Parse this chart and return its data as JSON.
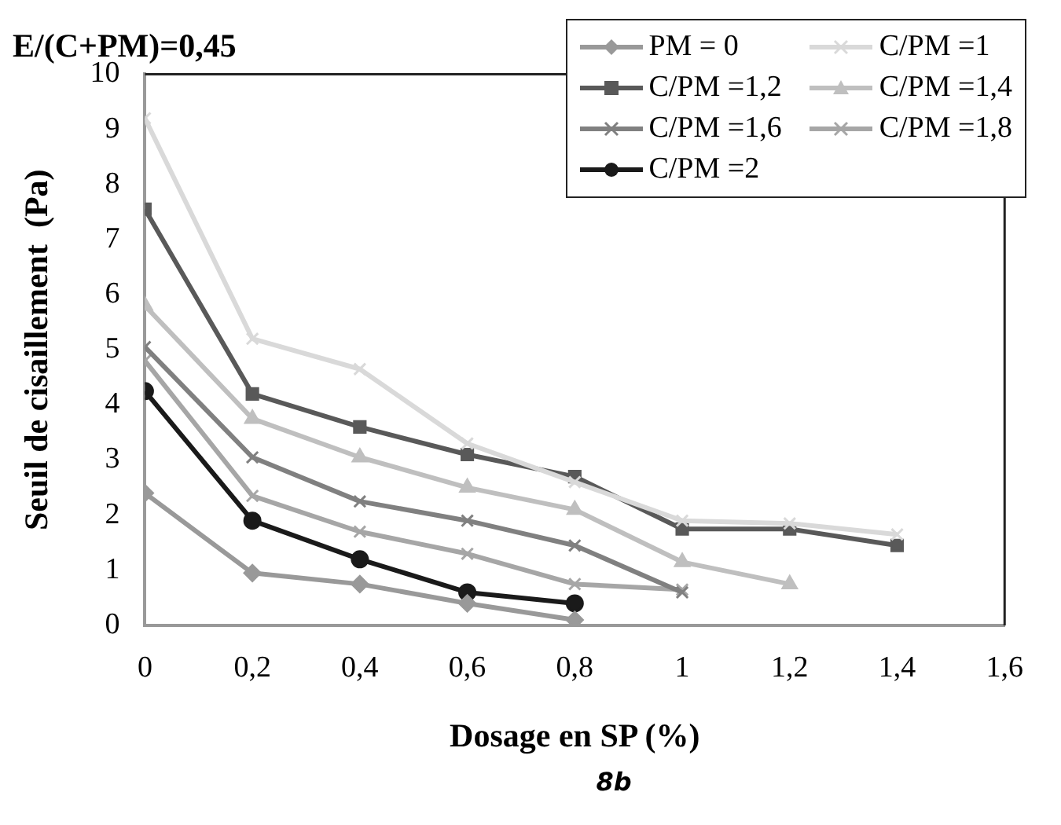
{
  "chart_data": {
    "type": "line",
    "title": "E/(C+PM)=0,45",
    "xlabel": "Dosage en SP (%)",
    "ylabel": "Seuil de cisaillement  (Pa)",
    "annotations": [
      "8b"
    ],
    "xlim": [
      0,
      1.6
    ],
    "xticks": [
      0,
      {
        "value": 0.2,
        "label": "0,2"
      },
      {
        "value": 0.4,
        "label": "0,4"
      },
      {
        "value": 0.6,
        "label": "0,6"
      },
      {
        "value": 0.8,
        "label": "0,8"
      },
      1,
      {
        "value": 1.2,
        "label": "1,2"
      },
      {
        "value": 1.4,
        "label": "1,4"
      },
      {
        "value": 1.6,
        "label": "1,6"
      }
    ],
    "ylim": [
      0,
      10
    ],
    "yticks": [
      0,
      1,
      2,
      3,
      4,
      5,
      6,
      7,
      8,
      9,
      10
    ],
    "grid": false,
    "legend": "top right",
    "line_style": "solid",
    "series": [
      {
        "name": "PM = 0",
        "color": "#999999",
        "marker": "diamond",
        "x": [
          0,
          0.2,
          0.4,
          0.6,
          0.8
        ],
        "values": [
          2.4,
          0.95,
          0.75,
          0.4,
          0.1
        ]
      },
      {
        "name": "C/PM =1",
        "color": "#d9d9d9",
        "marker": "cross",
        "x": [
          0,
          0.2,
          0.4,
          0.6,
          0.8,
          1,
          1.2,
          1.4
        ],
        "values": [
          9.2,
          5.2,
          4.65,
          3.3,
          2.6,
          1.9,
          1.85,
          1.65
        ]
      },
      {
        "name": "C/PM =1,2",
        "color": "#595959",
        "marker": "square",
        "x": [
          0,
          0.2,
          0.4,
          0.6,
          0.8,
          1,
          1.2,
          1.4
        ],
        "values": [
          7.55,
          4.2,
          3.6,
          3.1,
          2.7,
          1.75,
          1.75,
          1.45
        ]
      },
      {
        "name": "C/PM =1,4",
        "color": "#bfbfbf",
        "marker": "triangle",
        "x": [
          0,
          0.2,
          0.4,
          0.6,
          0.8,
          1,
          1.2
        ],
        "values": [
          5.8,
          3.75,
          3.05,
          2.5,
          2.1,
          1.15,
          0.75
        ]
      },
      {
        "name": "C/PM =1,6",
        "color": "#808080",
        "marker": "cross",
        "x": [
          0,
          0.2,
          0.4,
          0.6,
          0.8,
          1
        ],
        "values": [
          5.05,
          3.05,
          2.25,
          1.9,
          1.45,
          0.6
        ]
      },
      {
        "name": "C/PM =1,8",
        "color": "#a6a6a6",
        "marker": "cross",
        "x": [
          0,
          0.2,
          0.4,
          0.6,
          0.8,
          1
        ],
        "values": [
          4.8,
          2.35,
          1.7,
          1.3,
          0.75,
          0.65
        ]
      },
      {
        "name": "C/PM =2",
        "color": "#1a1a1a",
        "marker": "circle",
        "x": [
          0,
          0.2,
          0.4,
          0.6,
          0.8
        ],
        "values": [
          4.25,
          1.9,
          1.2,
          0.6,
          0.4
        ]
      }
    ]
  }
}
